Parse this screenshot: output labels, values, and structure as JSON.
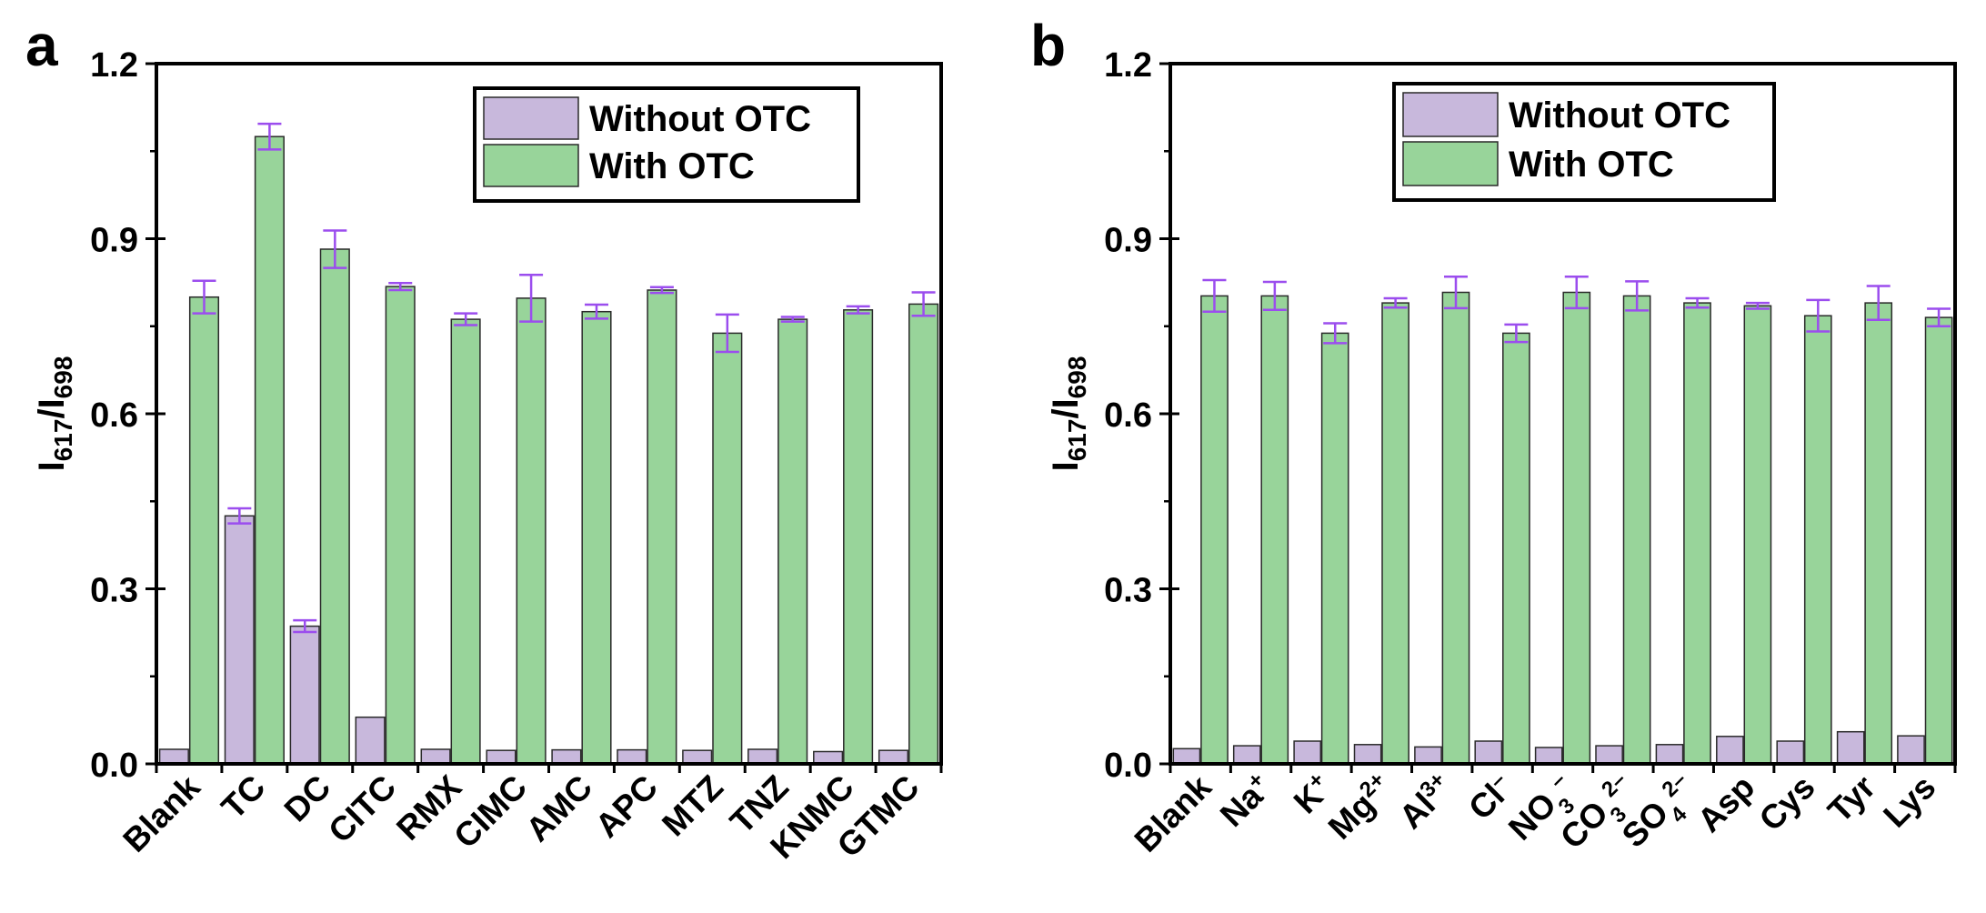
{
  "chart_data": [
    {
      "type": "bar",
      "panel_label": "a",
      "ylabel": "I617/I698",
      "ylabel_parts": {
        "main": "I",
        "sub1": "617",
        "sep": "/I",
        "sub2": "698"
      },
      "ylim": [
        0,
        1.2
      ],
      "yticks": [
        "0.0",
        "0.3",
        "0.6",
        "0.9",
        "1.2"
      ],
      "ytick_values": [
        0,
        0.3,
        0.6,
        0.9,
        1.2
      ],
      "legend": [
        "Without OTC",
        "With OTC"
      ],
      "legend_position": "top-right",
      "categories": [
        "Blank",
        "TC",
        "DC",
        "CITC",
        "RMX",
        "CIMC",
        "AMC",
        "APC",
        "MTZ",
        "TNZ",
        "KNMC",
        "GTMC"
      ],
      "category_labels": [
        [
          {
            "t": "Blank"
          }
        ],
        [
          {
            "t": "TC"
          }
        ],
        [
          {
            "t": "DC"
          }
        ],
        [
          {
            "t": "CITC"
          }
        ],
        [
          {
            "t": "RMX"
          }
        ],
        [
          {
            "t": "CIMC"
          }
        ],
        [
          {
            "t": "AMC"
          }
        ],
        [
          {
            "t": "APC"
          }
        ],
        [
          {
            "t": "MTZ"
          }
        ],
        [
          {
            "t": "TNZ"
          }
        ],
        [
          {
            "t": "KNMC"
          }
        ],
        [
          {
            "t": "GTMC"
          }
        ]
      ],
      "series": [
        {
          "name": "Without OTC",
          "color": "#c8b8dc",
          "values": [
            0.025,
            0.425,
            0.236,
            0.08,
            0.025,
            0.023,
            0.024,
            0.024,
            0.023,
            0.025,
            0.021,
            0.023
          ],
          "errors": [
            0,
            0.013,
            0.01,
            0,
            0,
            0,
            0,
            0,
            0,
            0,
            0,
            0
          ]
        },
        {
          "name": "With OTC",
          "color": "#98d49a",
          "values": [
            0.8,
            1.075,
            0.882,
            0.818,
            0.762,
            0.798,
            0.775,
            0.812,
            0.738,
            0.762,
            0.778,
            0.788
          ],
          "errors": [
            0.028,
            0.022,
            0.032,
            0.006,
            0.01,
            0.04,
            0.012,
            0.005,
            0.032,
            0.004,
            0.006,
            0.02
          ]
        }
      ]
    },
    {
      "type": "bar",
      "panel_label": "b",
      "ylabel": "I617/I698",
      "ylabel_parts": {
        "main": "I",
        "sub1": "617",
        "sep": "/I",
        "sub2": "698"
      },
      "ylim": [
        0,
        1.2
      ],
      "yticks": [
        "0.0",
        "0.3",
        "0.6",
        "0.9",
        "1.2"
      ],
      "ytick_values": [
        0,
        0.3,
        0.6,
        0.9,
        1.2
      ],
      "legend": [
        "Without OTC",
        "With OTC"
      ],
      "legend_position": "top-right",
      "categories": [
        "Blank",
        "Na+",
        "K+",
        "Mg2+",
        "Al3+",
        "Cl–",
        "NO3–",
        "CO32–",
        "SO42–",
        "Asp",
        "Cys",
        "Tyr",
        "Lys"
      ],
      "category_labels": [
        [
          {
            "t": "Blank"
          }
        ],
        [
          {
            "t": "Na"
          },
          {
            "t": "+",
            "s": "sup"
          }
        ],
        [
          {
            "t": "K"
          },
          {
            "t": "+",
            "s": "sup"
          }
        ],
        [
          {
            "t": "Mg"
          },
          {
            "t": "2+",
            "s": "sup"
          }
        ],
        [
          {
            "t": "Al"
          },
          {
            "t": "3+",
            "s": "sup"
          }
        ],
        [
          {
            "t": "Cl"
          },
          {
            "t": "–",
            "s": "sup"
          }
        ],
        [
          {
            "t": "NO"
          },
          {
            "t": "3",
            "s": "sub"
          },
          {
            "t": "–",
            "s": "sup"
          }
        ],
        [
          {
            "t": "CO"
          },
          {
            "t": "3",
            "s": "sub"
          },
          {
            "t": "2–",
            "s": "sup"
          }
        ],
        [
          {
            "t": "SO"
          },
          {
            "t": "4",
            "s": "sub"
          },
          {
            "t": "2–",
            "s": "sup"
          }
        ],
        [
          {
            "t": "Asp"
          }
        ],
        [
          {
            "t": "Cys"
          }
        ],
        [
          {
            "t": "Tyr"
          }
        ],
        [
          {
            "t": "Lys"
          }
        ]
      ],
      "series": [
        {
          "name": "Without OTC",
          "color": "#c8b8dc",
          "values": [
            0.026,
            0.031,
            0.039,
            0.033,
            0.029,
            0.039,
            0.028,
            0.031,
            0.033,
            0.047,
            0.039,
            0.055,
            0.048
          ],
          "errors": [
            0,
            0,
            0,
            0,
            0,
            0,
            0,
            0,
            0,
            0,
            0,
            0,
            0
          ]
        },
        {
          "name": "With OTC",
          "color": "#98d49a",
          "values": [
            0.802,
            0.802,
            0.738,
            0.79,
            0.808,
            0.738,
            0.808,
            0.802,
            0.79,
            0.785,
            0.768,
            0.79,
            0.765
          ],
          "errors": [
            0.027,
            0.024,
            0.017,
            0.008,
            0.027,
            0.015,
            0.027,
            0.025,
            0.008,
            0.005,
            0.027,
            0.029,
            0.015
          ]
        }
      ]
    }
  ]
}
